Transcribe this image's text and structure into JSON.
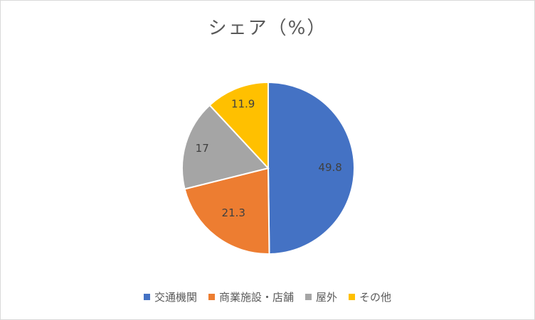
{
  "chart_data": {
    "type": "pie",
    "title": "シェア（%）",
    "categories": [
      "交通機関",
      "商業施設・店舗",
      "屋外",
      "その他"
    ],
    "values": [
      49.8,
      21.3,
      17,
      11.9
    ],
    "data_labels": [
      "49.8",
      "21.3",
      "17",
      "11.9"
    ],
    "colors": [
      "#4472C4",
      "#ED7D31",
      "#A5A5A5",
      "#FFC000"
    ],
    "legend_position": "bottom",
    "start_angle": "12 o'clock",
    "direction": "clockwise"
  }
}
